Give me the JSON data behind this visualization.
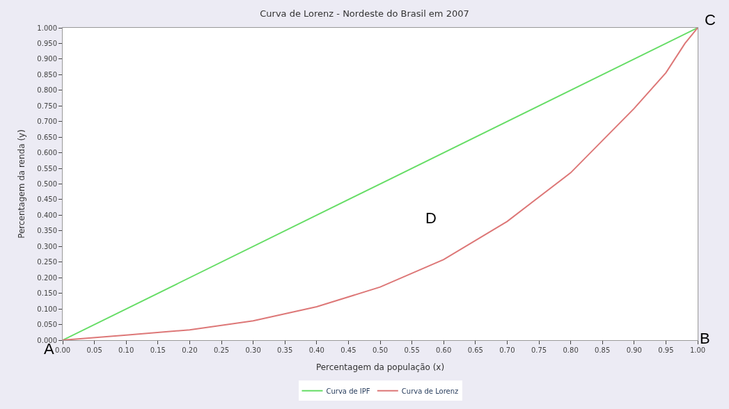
{
  "chart_data": {
    "type": "line",
    "title": "Curva de Lorenz - Nordeste do Brasil em 2007",
    "xlabel": "Percentagem da população (x)",
    "ylabel": "Percentagem da renda (y)",
    "x": [
      0,
      0.1,
      0.2,
      0.3,
      0.4,
      0.5,
      0.6,
      0.7,
      0.8,
      0.9,
      0.95,
      0.98,
      1.0
    ],
    "series": [
      {
        "name": "Curva de IPF",
        "color": "#66dd66",
        "x": [
          0,
          1.0
        ],
        "values": [
          0,
          1.0
        ]
      },
      {
        "name": "Curva de Lorenz",
        "color": "#dd7777",
        "values": [
          0,
          0.016,
          0.033,
          0.062,
          0.107,
          0.17,
          0.258,
          0.38,
          0.536,
          0.742,
          0.856,
          0.95,
          1.0
        ]
      }
    ],
    "xlim": [
      0,
      1.0
    ],
    "ylim": [
      0,
      1.0
    ],
    "xticks": [
      {
        "value": 0,
        "label": "0.00"
      },
      {
        "value": 0.05,
        "label": "0.05"
      },
      {
        "value": 0.1,
        "label": "0.10"
      },
      {
        "value": 0.15,
        "label": "0.15"
      },
      {
        "value": 0.2,
        "label": "0.20"
      },
      {
        "value": 0.25,
        "label": "0.25"
      },
      {
        "value": 0.3,
        "label": "0.30"
      },
      {
        "value": 0.35,
        "label": "0.35"
      },
      {
        "value": 0.4,
        "label": "0.40"
      },
      {
        "value": 0.45,
        "label": "0.45"
      },
      {
        "value": 0.5,
        "label": "0.50"
      },
      {
        "value": 0.55,
        "label": "0.55"
      },
      {
        "value": 0.6,
        "label": "0.60"
      },
      {
        "value": 0.65,
        "label": "0.65"
      },
      {
        "value": 0.7,
        "label": "0.70"
      },
      {
        "value": 0.75,
        "label": "0.75"
      },
      {
        "value": 0.8,
        "label": "0.80"
      },
      {
        "value": 0.85,
        "label": "0.85"
      },
      {
        "value": 0.9,
        "label": "0.90"
      },
      {
        "value": 0.95,
        "label": "0.95"
      },
      {
        "value": 1.0,
        "label": "1.00"
      }
    ],
    "yticks": [
      {
        "value": 0,
        "label": "0.000"
      },
      {
        "value": 0.05,
        "label": "0.050"
      },
      {
        "value": 0.1,
        "label": "0.100"
      },
      {
        "value": 0.15,
        "label": "0.150"
      },
      {
        "value": 0.2,
        "label": "0.200"
      },
      {
        "value": 0.25,
        "label": "0.250"
      },
      {
        "value": 0.3,
        "label": "0.300"
      },
      {
        "value": 0.35,
        "label": "0.350"
      },
      {
        "value": 0.4,
        "label": "0.400"
      },
      {
        "value": 0.45,
        "label": "0.450"
      },
      {
        "value": 0.5,
        "label": "0.500"
      },
      {
        "value": 0.55,
        "label": "0.550"
      },
      {
        "value": 0.6,
        "label": "0.600"
      },
      {
        "value": 0.65,
        "label": "0.650"
      },
      {
        "value": 0.7,
        "label": "0.700"
      },
      {
        "value": 0.75,
        "label": "0.750"
      },
      {
        "value": 0.8,
        "label": "0.800"
      },
      {
        "value": 0.85,
        "label": "0.850"
      },
      {
        "value": 0.9,
        "label": "0.900"
      },
      {
        "value": 0.95,
        "label": "0.950"
      },
      {
        "value": 1.0,
        "label": "1.000"
      }
    ],
    "annotations": [
      {
        "text": "A",
        "x": 0,
        "y": 0
      },
      "B",
      {
        "text": "C",
        "x": 1.0,
        "y": 1.0
      },
      "D"
    ],
    "legend": "bottom",
    "marker": "none",
    "line_style": "solid"
  }
}
